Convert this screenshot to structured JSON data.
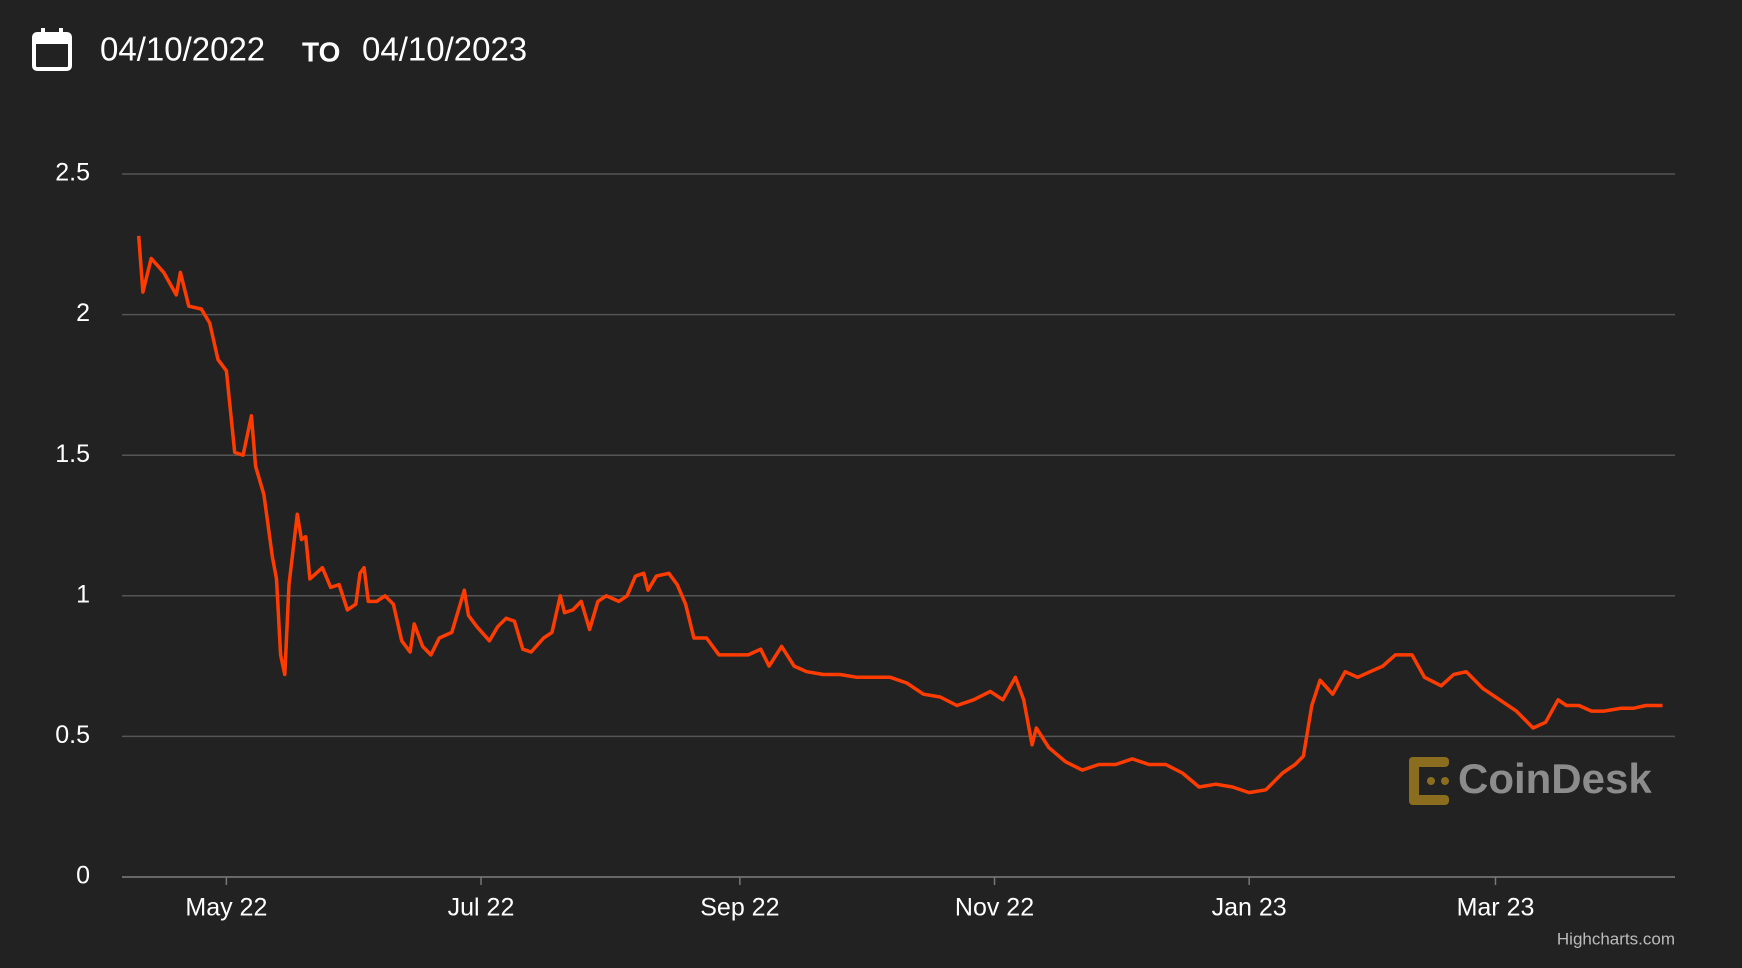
{
  "header": {
    "from": "04/10/2022",
    "separator": "TO",
    "to": "04/10/2023"
  },
  "chart_data": {
    "type": "line",
    "x": [
      "2022-04-10",
      "2022-04-11",
      "2022-04-13",
      "2022-04-16",
      "2022-04-19",
      "2022-04-20",
      "2022-04-22",
      "2022-04-25",
      "2022-04-27",
      "2022-04-29",
      "2022-05-01",
      "2022-05-03",
      "2022-05-05",
      "2022-05-07",
      "2022-05-08",
      "2022-05-10",
      "2022-05-12",
      "2022-05-13",
      "2022-05-14",
      "2022-05-15",
      "2022-05-16",
      "2022-05-18",
      "2022-05-19",
      "2022-05-20",
      "2022-05-21",
      "2022-05-24",
      "2022-05-26",
      "2022-05-28",
      "2022-05-30",
      "2022-06-01",
      "2022-06-02",
      "2022-06-03",
      "2022-06-04",
      "2022-06-06",
      "2022-06-08",
      "2022-06-10",
      "2022-06-12",
      "2022-06-14",
      "2022-06-15",
      "2022-06-17",
      "2022-06-19",
      "2022-06-21",
      "2022-06-24",
      "2022-06-26",
      "2022-06-27",
      "2022-06-28",
      "2022-06-30",
      "2022-07-03",
      "2022-07-05",
      "2022-07-07",
      "2022-07-09",
      "2022-07-11",
      "2022-07-13",
      "2022-07-16",
      "2022-07-18",
      "2022-07-20",
      "2022-07-21",
      "2022-07-23",
      "2022-07-25",
      "2022-07-27",
      "2022-07-29",
      "2022-07-31",
      "2022-08-03",
      "2022-08-05",
      "2022-08-07",
      "2022-08-09",
      "2022-08-10",
      "2022-08-12",
      "2022-08-15",
      "2022-08-17",
      "2022-08-19",
      "2022-08-21",
      "2022-08-24",
      "2022-08-27",
      "2022-08-30",
      "2022-09-03",
      "2022-09-06",
      "2022-09-08",
      "2022-09-11",
      "2022-09-14",
      "2022-09-17",
      "2022-09-21",
      "2022-09-25",
      "2022-09-29",
      "2022-10-03",
      "2022-10-07",
      "2022-10-11",
      "2022-10-15",
      "2022-10-19",
      "2022-10-23",
      "2022-10-27",
      "2022-10-31",
      "2022-11-03",
      "2022-11-06",
      "2022-11-08",
      "2022-11-10",
      "2022-11-11",
      "2022-11-14",
      "2022-11-18",
      "2022-11-22",
      "2022-11-26",
      "2022-11-30",
      "2022-12-04",
      "2022-12-08",
      "2022-12-12",
      "2022-12-16",
      "2022-12-20",
      "2022-12-24",
      "2022-12-28",
      "2023-01-01",
      "2023-01-05",
      "2023-01-09",
      "2023-01-12",
      "2023-01-14",
      "2023-01-16",
      "2023-01-18",
      "2023-01-21",
      "2023-01-24",
      "2023-01-27",
      "2023-01-30",
      "2023-02-02",
      "2023-02-05",
      "2023-02-09",
      "2023-02-12",
      "2023-02-16",
      "2023-02-19",
      "2023-02-22",
      "2023-02-26",
      "2023-03-02",
      "2023-03-06",
      "2023-03-10",
      "2023-03-13",
      "2023-03-16",
      "2023-03-18",
      "2023-03-21",
      "2023-03-24",
      "2023-03-27",
      "2023-03-31",
      "2023-04-03",
      "2023-04-06",
      "2023-04-10"
    ],
    "series": [
      {
        "color": "#ff3c00",
        "values": [
          2.28,
          2.08,
          2.2,
          2.15,
          2.07,
          2.15,
          2.03,
          2.02,
          1.97,
          1.84,
          1.8,
          1.51,
          1.5,
          1.64,
          1.46,
          1.36,
          1.14,
          1.06,
          0.79,
          0.72,
          1.04,
          1.29,
          1.2,
          1.21,
          1.06,
          1.1,
          1.03,
          1.04,
          0.95,
          0.97,
          1.08,
          1.1,
          0.98,
          0.98,
          1.0,
          0.97,
          0.84,
          0.8,
          0.9,
          0.82,
          0.79,
          0.85,
          0.87,
          0.97,
          1.02,
          0.93,
          0.89,
          0.84,
          0.89,
          0.92,
          0.91,
          0.81,
          0.8,
          0.85,
          0.87,
          1.0,
          0.94,
          0.95,
          0.98,
          0.88,
          0.98,
          1.0,
          0.98,
          1.0,
          1.07,
          1.08,
          1.02,
          1.07,
          1.08,
          1.04,
          0.97,
          0.85,
          0.85,
          0.79,
          0.79,
          0.79,
          0.81,
          0.75,
          0.82,
          0.75,
          0.73,
          0.72,
          0.72,
          0.71,
          0.71,
          0.71,
          0.69,
          0.65,
          0.64,
          0.61,
          0.63,
          0.66,
          0.63,
          0.71,
          0.63,
          0.47,
          0.53,
          0.46,
          0.41,
          0.38,
          0.4,
          0.4,
          0.42,
          0.4,
          0.4,
          0.37,
          0.32,
          0.33,
          0.32,
          0.3,
          0.31,
          0.37,
          0.4,
          0.43,
          0.61,
          0.7,
          0.65,
          0.73,
          0.71,
          0.73,
          0.75,
          0.79,
          0.79,
          0.71,
          0.68,
          0.72,
          0.73,
          0.67,
          0.63,
          0.59,
          0.53,
          0.55,
          0.63,
          0.61,
          0.61,
          0.59,
          0.59,
          0.6,
          0.6,
          0.61,
          0.61
        ]
      }
    ],
    "xlim": [
      "2022-04-06",
      "2023-04-13"
    ],
    "xticks": [
      {
        "value": "2022-05-01",
        "label": "May 22"
      },
      {
        "value": "2022-07-01",
        "label": "Jul 22"
      },
      {
        "value": "2022-09-01",
        "label": "Sep 22"
      },
      {
        "value": "2022-11-01",
        "label": "Nov 22"
      },
      {
        "value": "2023-01-01",
        "label": "Jan 23"
      },
      {
        "value": "2023-03-01",
        "label": "Mar 23"
      }
    ],
    "ylim": [
      0,
      2.5
    ],
    "yticks": [
      0,
      0.5,
      1,
      1.5,
      2,
      2.5
    ],
    "grid": true,
    "watermark": "CoinDesk",
    "credits": "Highcharts.com"
  }
}
